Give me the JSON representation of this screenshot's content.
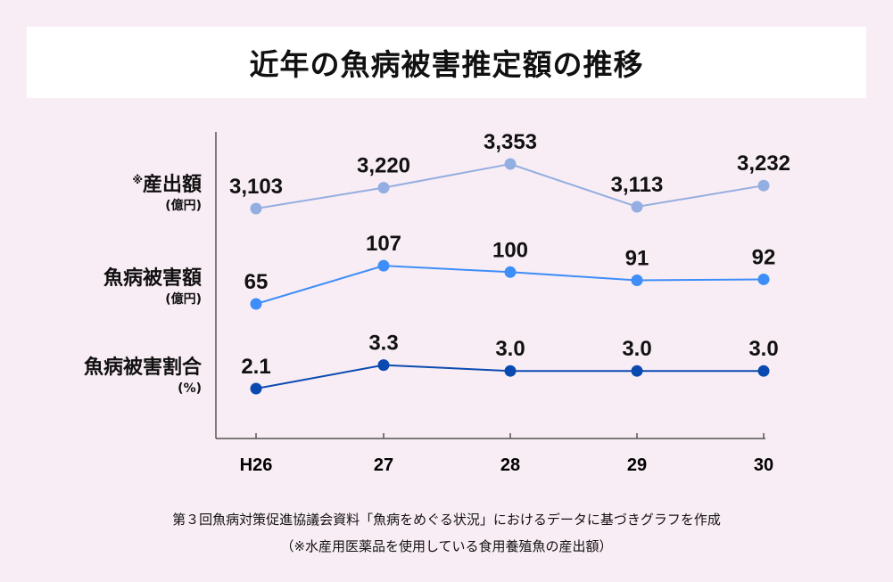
{
  "chart_data": {
    "type": "line",
    "title": "近年の魚病被害推定額の推移",
    "categories": [
      "H26",
      "27",
      "28",
      "29",
      "30"
    ],
    "series": [
      {
        "name": "産出額",
        "note_mark": "※",
        "unit": "(億円)",
        "color": "#93aee0",
        "values": [
          3103,
          3220,
          3353,
          3113,
          3232
        ],
        "labels": [
          "3,103",
          "3,220",
          "3,353",
          "3,113",
          "3,232"
        ]
      },
      {
        "name": "魚病被害額",
        "unit": "(億円)",
        "color": "#3d8ef8",
        "values": [
          65,
          107,
          100,
          91,
          92
        ],
        "labels": [
          "65",
          "107",
          "100",
          "91",
          "92"
        ]
      },
      {
        "name": "魚病被害割合",
        "unit": "(%)",
        "color": "#0a4ab0",
        "values": [
          2.1,
          3.3,
          3.0,
          3.0,
          3.0
        ],
        "labels": [
          "2.1",
          "3.3",
          "3.0",
          "3.0",
          "3.0"
        ]
      }
    ],
    "grid": false
  },
  "footnotes": [
    "第３回魚病対策促進協議会資料「魚病をめぐる状況」におけるデータに基づきグラフを作成",
    "（※水産用医薬品を使用している食用養殖魚の産出額）"
  ]
}
